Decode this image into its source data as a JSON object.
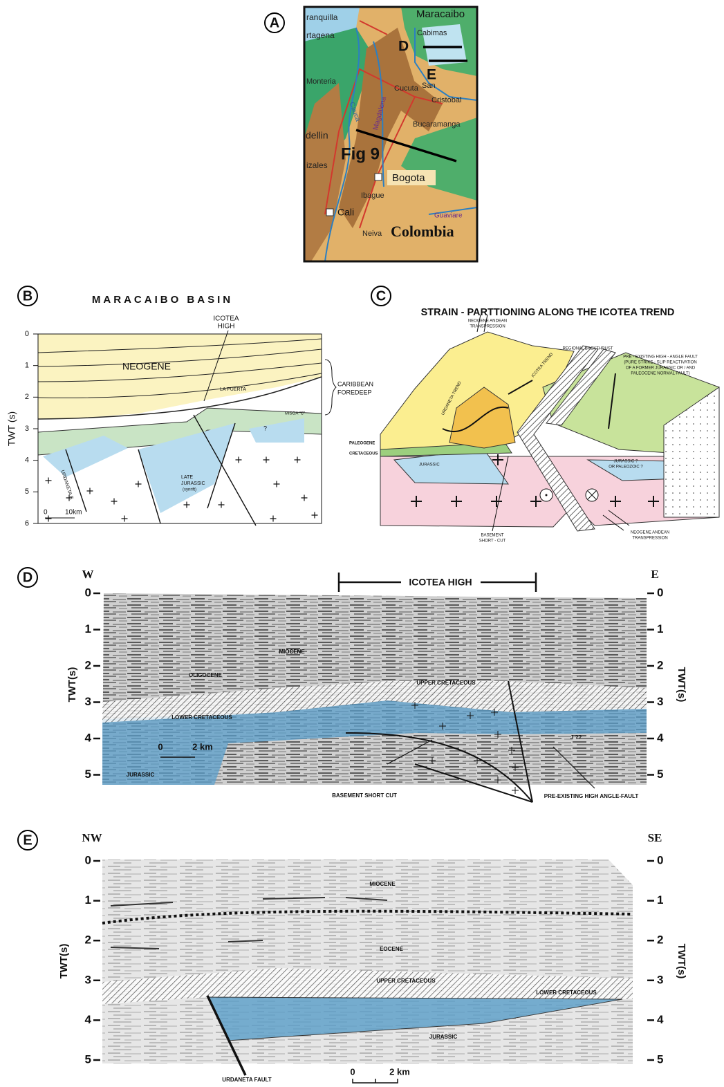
{
  "panel_a": {
    "label": "A",
    "barranquilla": "ranquilla",
    "cartagena": "rtagena",
    "maracaibo": "Maracaibo",
    "cabimas": "Cabimas",
    "d": "D",
    "e": "E",
    "monteria": "Monteria",
    "cauca": "Cauca",
    "cucuta": "Cucuta",
    "san_cristobal": [
      "San",
      "Cristobal"
    ],
    "bucaramanga": "Bucaramanga",
    "medellin": "dellin",
    "magdalena": "Magdalena",
    "fig9": "Fig 9",
    "manizales": "izales",
    "bogota": "Bogota",
    "ibague": "Ibague",
    "cali": "Cali",
    "guaviare": "Guaviare",
    "neiva": "Neiva",
    "colombia": "Colombia"
  },
  "panel_b": {
    "label": "B",
    "title": "MARACAIBO BASIN",
    "axis_label": "TWT (s)",
    "ticks": [
      0,
      1,
      2,
      3,
      4,
      5,
      6
    ],
    "neogene": "NEOGENE",
    "icotea_high": [
      "ICOTEA",
      "HIGH"
    ],
    "la_puerta": "LA PUERTA",
    "caribbean_foredeep": [
      "CARIBBEAN",
      "FOREDEEP"
    ],
    "misoa": "MISOA \"C\"",
    "question": "?",
    "urdaneta": "URDANETA F.",
    "late_jurassic": [
      "LATE",
      "JURASSIC",
      "(synrift)"
    ],
    "scale": [
      "0",
      "10km"
    ]
  },
  "panel_c": {
    "label": "C",
    "title": "STRAIN - PARTTIONING ALONG THE ICOTEA TREND",
    "neogene_andean_top": [
      "NEOGENE ANDEAN",
      "TRANSPRESSION"
    ],
    "regional_backthrust": "REGIONAL BACKTHRUST",
    "pre_existing_fault": [
      "PRE - EXISTING HIGH - ANGLE FAULT",
      "(PURE STRIKE - SLIP REACTIVATION",
      "OF A FORMER JURASSIC OR / AND",
      "PALEOCENE NORMAL FAULT)"
    ],
    "urdaneta_trend": "URDANETA TREND",
    "icotea_trend": "ICOTEA TREND",
    "paleogene": "PALEOGENE",
    "cretaceous": "CRETACEOUS",
    "jurassic": "JURASSIC",
    "jurassic_paleozoic": [
      "JURASSIC ?",
      "OR PALEOZOIC ?"
    ],
    "basement_short_cut": [
      "BASEMENT",
      "SHORT - CUT"
    ],
    "neogene_andean_bottom": [
      "NEOGENE ANDEAN",
      "TRANSPRESSION"
    ]
  },
  "panel_d": {
    "label": "D",
    "west": "W",
    "east": "E",
    "icotea_high": "ICOTEA HIGH",
    "axis_label": "TWT(s)",
    "left_ticks": [
      0,
      1,
      2,
      3,
      4,
      5
    ],
    "right_ticks": [
      0,
      1,
      2,
      3,
      4,
      5
    ],
    "miocene": "MIOCENE",
    "oligocene": "OLIGOCENE",
    "upper_cretaceous": "UPPER CRETACEOUS",
    "lower_cretaceous": "LOWER CRETACEOUS",
    "scale": [
      "0",
      "2 km"
    ],
    "jurassic": "JURASSIC",
    "j": "J ??",
    "basement_short_cut": "BASEMENT SHORT CUT",
    "pre_existing_fault": "PRE-EXISTING HIGH ANGLE-FAULT"
  },
  "panel_e": {
    "label": "E",
    "northwest": "NW",
    "southeast": "SE",
    "axis_label": "TWT(s)",
    "left_ticks": [
      0,
      1,
      2,
      3,
      4,
      5
    ],
    "right_ticks": [
      0,
      1,
      2,
      3,
      4,
      5
    ],
    "miocene": "MIOCENE",
    "eocene": "EOCENE",
    "upper_cretaceous": "UPPER CRETACEOUS",
    "lower_cretaceous": "LOWER CRETACEOUS",
    "jurassic": "JURASSIC",
    "urdaneta_fault": "URDANETA FAULT",
    "scale": [
      "0",
      "2 km"
    ]
  }
}
